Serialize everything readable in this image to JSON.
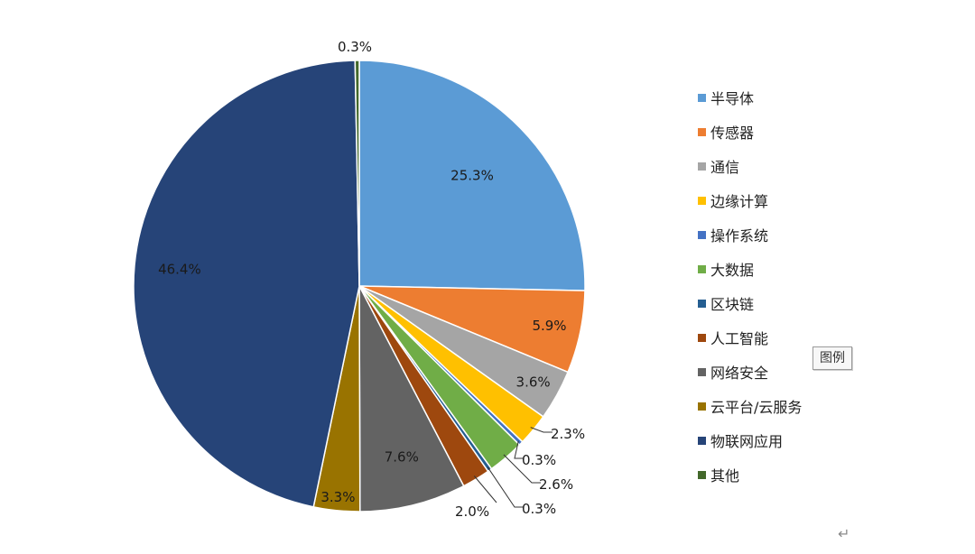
{
  "chart_data": {
    "type": "pie",
    "slices": [
      {
        "label": "半导体",
        "value": 25.3,
        "value_label": "25.3%",
        "color": "#5B9BD5"
      },
      {
        "label": "传感器",
        "value": 5.9,
        "value_label": "5.9%",
        "color": "#ED7D31"
      },
      {
        "label": "通信",
        "value": 3.6,
        "value_label": "3.6%",
        "color": "#A5A5A5"
      },
      {
        "label": "边缘计算",
        "value": 2.3,
        "value_label": "2.3%",
        "color": "#FFC000"
      },
      {
        "label": "操作系统",
        "value": 0.3,
        "value_label": "0.3%",
        "color": "#4472C4"
      },
      {
        "label": "大数据",
        "value": 2.6,
        "value_label": "2.6%",
        "color": "#70AD47"
      },
      {
        "label": "区块链",
        "value": 0.3,
        "value_label": "0.3%",
        "color": "#255E91"
      },
      {
        "label": "人工智能",
        "value": 2.0,
        "value_label": "2.0%",
        "color": "#9E480E"
      },
      {
        "label": "网络安全",
        "value": 7.6,
        "value_label": "7.6%",
        "color": "#636363"
      },
      {
        "label": "云平台/云服务",
        "value": 3.3,
        "value_label": "3.3%",
        "color": "#997300"
      },
      {
        "label": "物联网应用",
        "value": 46.4,
        "value_label": "46.4%",
        "color": "#264478"
      },
      {
        "label": "其他",
        "value": 0.3,
        "value_label": "0.3%",
        "color": "#43682B"
      }
    ],
    "legend_position": "right"
  },
  "ui": {
    "legend_tag": "图例",
    "return_mark": "↵"
  }
}
